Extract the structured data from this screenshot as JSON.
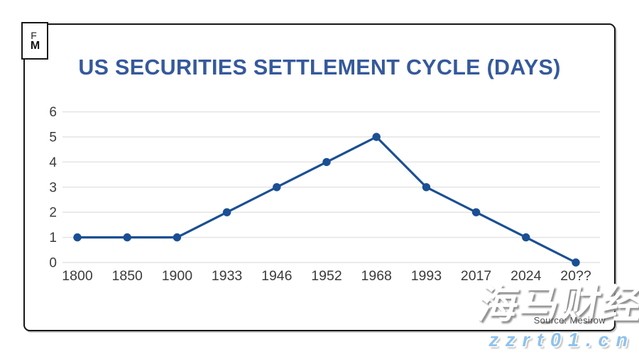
{
  "logo": {
    "line1": "F",
    "line2": "M"
  },
  "title": "US SECURITIES SETTLEMENT CYCLE (DAYS)",
  "source": "Source: Mesirow",
  "watermarks": {
    "cjk": "海马财经",
    "url": "zzrt01.cn"
  },
  "colors": {
    "title_blue": "#35599c",
    "line_blue": "#1b4f93",
    "grid_gray": "#e4e4e4",
    "axis_text": "#3b3b3b",
    "frame_black": "#161616",
    "watermark_url_blue": "#8ec2ee"
  },
  "chart_data": {
    "type": "line",
    "title": "US SECURITIES SETTLEMENT CYCLE (DAYS)",
    "categories": [
      "1800",
      "1850",
      "1900",
      "1933",
      "1946",
      "1952",
      "1968",
      "1993",
      "2017",
      "2024",
      "20??"
    ],
    "values": [
      1,
      1,
      1,
      2,
      3,
      4,
      5,
      3,
      2,
      1,
      0
    ],
    "xlabel": "",
    "ylabel": "",
    "ylim": [
      0,
      6
    ],
    "yticks": [
      0,
      1,
      2,
      3,
      4,
      5,
      6
    ],
    "grid": true,
    "legend": false,
    "marker": "circle"
  }
}
